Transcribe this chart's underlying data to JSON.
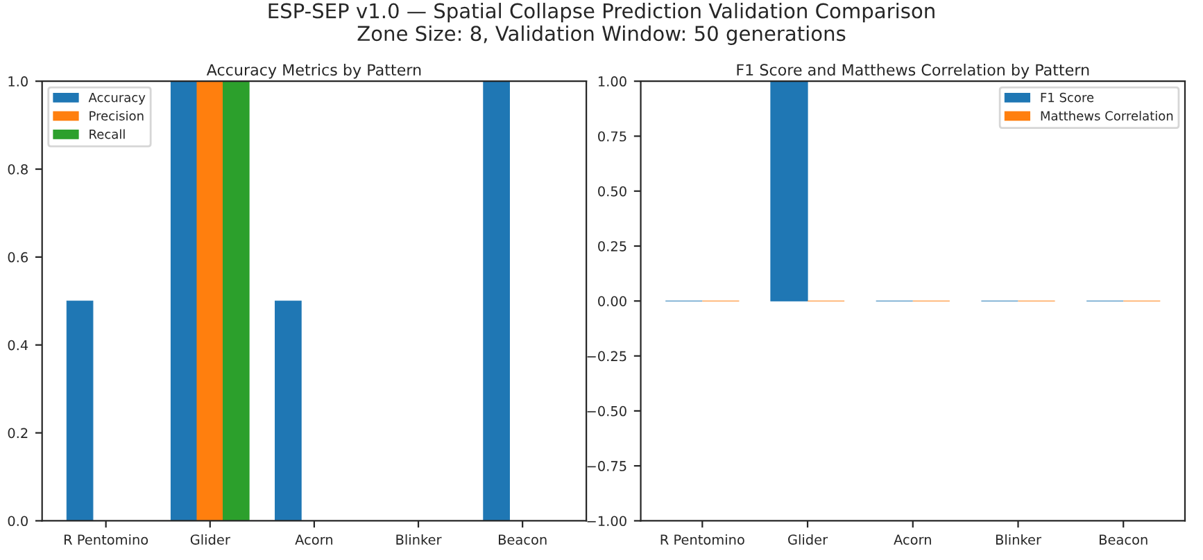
{
  "chart_data": [
    {
      "type": "bar",
      "title": "Accuracy Metrics by Pattern",
      "annotations": [
        "ESP-SEP v1.0 — Spatial Collapse Prediction Validation Comparison\nZone Size: 8, Validation Window: 50 generations"
      ],
      "categories": [
        "R Pentomino",
        "Glider",
        "Acorn",
        "Blinker",
        "Beacon"
      ],
      "series": [
        {
          "name": "Accuracy",
          "color": "#1f77b4",
          "values": [
            0.5,
            1.0,
            0.5,
            0,
            1.0
          ]
        },
        {
          "name": "Precision",
          "color": "#ff7f0e",
          "values": [
            0,
            1.0,
            0,
            0,
            0
          ]
        },
        {
          "name": "Recall",
          "color": "#2ca02c",
          "values": [
            0,
            1.0,
            0,
            0,
            0
          ]
        }
      ],
      "ylim": [
        0,
        1
      ],
      "yticks": [
        {
          "value": 0,
          "label": "0.0"
        },
        {
          "value": 0.2,
          "label": "0.2"
        },
        {
          "value": 0.4,
          "label": "0.4"
        },
        {
          "value": 0.6,
          "label": "0.6"
        },
        {
          "value": 0.8,
          "label": "0.8"
        },
        {
          "value": 1,
          "label": "1.0"
        }
      ],
      "legend": "top left",
      "grid": false
    },
    {
      "type": "bar",
      "title": "F1 Score and Matthews Correlation by Pattern",
      "categories": [
        "R Pentomino",
        "Glider",
        "Acorn",
        "Blinker",
        "Beacon"
      ],
      "series": [
        {
          "name": "F1 Score",
          "color": "#1f77b4",
          "values": [
            0,
            1.0,
            0,
            0,
            0
          ]
        },
        {
          "name": "Matthews Correlation",
          "color": "#ff7f0e",
          "values": [
            0,
            0,
            0,
            0,
            0
          ]
        }
      ],
      "ylim": [
        -1,
        1
      ],
      "yticks": [
        {
          "value": -1,
          "label": "−1.00"
        },
        {
          "value": -0.75,
          "label": "−0.75"
        },
        {
          "value": -0.5,
          "label": "−0.50"
        },
        {
          "value": -0.25,
          "label": "−0.25"
        },
        {
          "value": 0,
          "label": "0.00"
        },
        {
          "value": 0.25,
          "label": "0.25"
        },
        {
          "value": 0.5,
          "label": "0.50"
        },
        {
          "value": 0.75,
          "label": "0.75"
        },
        {
          "value": 1,
          "label": "1.00"
        }
      ],
      "legend": "top right",
      "grid": false
    }
  ]
}
